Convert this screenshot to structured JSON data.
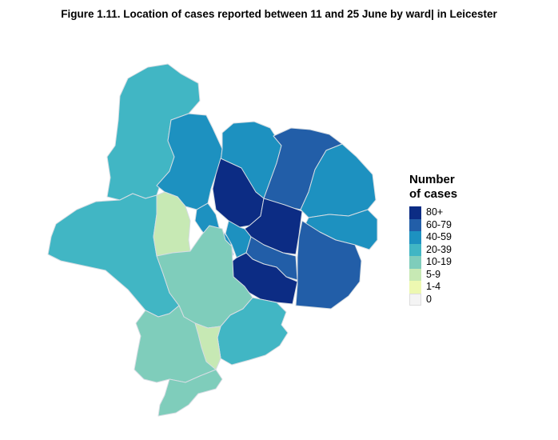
{
  "title": "Figure 1.11. Location of cases reported between 11 and 25 June by ward| in Leicester",
  "legend": {
    "title_line1": "Number",
    "title_line2": "of cases",
    "items": [
      {
        "label": "80+",
        "color": "#0c2c84"
      },
      {
        "label": "60-79",
        "color": "#225ea8"
      },
      {
        "label": "40-59",
        "color": "#1d91c0"
      },
      {
        "label": "20-39",
        "color": "#41b6c4"
      },
      {
        "label": "10-19",
        "color": "#7fcdbb"
      },
      {
        "label": "5-9",
        "color": "#c7e9b4"
      },
      {
        "label": "1-4",
        "color": "#edf8b1"
      },
      {
        "label": "0",
        "color": "#f4f4f4"
      }
    ]
  },
  "wards": [
    {
      "name": "north-west-ward",
      "category": "20-39"
    },
    {
      "name": "north-upper-ward",
      "category": "40-59"
    },
    {
      "name": "north-central-ward",
      "category": "40-59"
    },
    {
      "name": "north-east-upper-ward",
      "category": "60-79"
    },
    {
      "name": "east-upper-ward",
      "category": "40-59"
    },
    {
      "name": "west-ward",
      "category": "20-39"
    },
    {
      "name": "western-park-ward",
      "category": "5-9"
    },
    {
      "name": "central-west-ward",
      "category": "40-59"
    },
    {
      "name": "central-ward-a",
      "category": "80+"
    },
    {
      "name": "central-ward-b",
      "category": "80+"
    },
    {
      "name": "central-small-ward",
      "category": "40-59"
    },
    {
      "name": "east-ward",
      "category": "40-59"
    },
    {
      "name": "south-east-ward",
      "category": "60-79"
    },
    {
      "name": "south-central-ward",
      "category": "60-79"
    },
    {
      "name": "south-central-dark-ward",
      "category": "80+"
    },
    {
      "name": "south-west-central-ward",
      "category": "10-19"
    },
    {
      "name": "south-east-lower-ward",
      "category": "20-39"
    },
    {
      "name": "south-ward",
      "category": "10-19"
    },
    {
      "name": "south-lower-ward",
      "category": "10-19"
    },
    {
      "name": "south-tip-ward",
      "category": "5-9"
    }
  ]
}
